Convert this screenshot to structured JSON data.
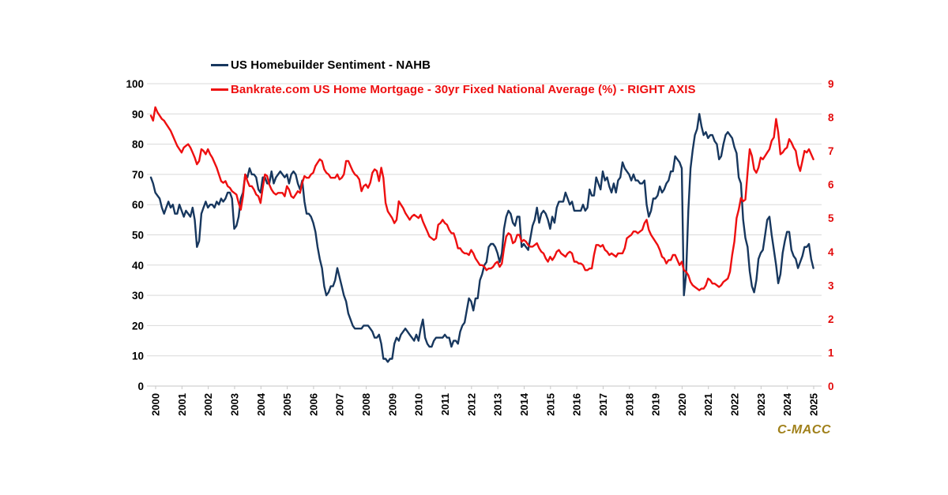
{
  "watermark": "C-MACC",
  "colors": {
    "navy": "#17375E",
    "red": "#EE0F10",
    "red_axis_text": "#E30B0C",
    "grid": "#D9D9D9",
    "axis_line": "#C6C6C6",
    "black_text": "#000000",
    "gold": "#A0801A",
    "background": "#FFFFFF"
  },
  "chart_data": {
    "type": "line",
    "title": "",
    "xlabel": "",
    "ylabel_left": "",
    "ylabel_right": "",
    "grid": "horizontal",
    "legend_position": "top-left",
    "x_start_year": 2000,
    "x_frequency": "monthly",
    "x_tick_labels": [
      "2000",
      "2001",
      "2002",
      "2003",
      "2004",
      "2005",
      "2006",
      "2007",
      "2008",
      "2009",
      "2010",
      "2011",
      "2012",
      "2013",
      "2014",
      "2015",
      "2016",
      "2017",
      "2018",
      "2019",
      "2020",
      "2021",
      "2022",
      "2023",
      "2024",
      "2025"
    ],
    "left_axis": {
      "min": 0,
      "max": 100,
      "ticks": [
        0,
        10,
        20,
        30,
        40,
        50,
        60,
        70,
        80,
        90,
        100
      ]
    },
    "right_axis": {
      "min": 0,
      "max": 9,
      "ticks": [
        0,
        1,
        2,
        3,
        4,
        5,
        6,
        7,
        8,
        9
      ]
    },
    "series": [
      {
        "name": "US Homebuilder Sentiment - NAHB",
        "axis": "left",
        "color": "#17375E",
        "label_color": "#000000",
        "values": [
          69,
          67,
          64,
          63,
          62,
          59,
          57,
          59,
          61,
          59,
          60,
          57,
          57,
          60,
          58,
          56,
          58,
          57,
          56,
          59,
          55,
          46,
          48,
          57,
          59,
          61,
          59,
          60,
          60,
          59,
          61,
          60,
          62,
          61,
          62,
          64,
          64,
          62,
          52,
          53,
          56,
          62,
          64,
          70,
          69,
          72,
          70,
          70,
          69,
          65,
          64,
          69,
          69,
          67,
          67,
          71,
          67,
          69,
          70,
          71,
          70,
          69,
          70,
          67,
          70,
          71,
          70,
          67,
          65,
          68,
          61,
          57,
          57,
          56,
          54,
          51,
          46,
          42,
          39,
          33,
          30,
          31,
          33,
          33,
          35,
          39,
          36,
          33,
          30,
          28,
          24,
          22,
          20,
          19,
          19,
          19,
          19,
          20,
          20,
          20,
          19,
          18,
          16,
          16,
          17,
          14,
          9,
          9,
          8,
          9,
          9,
          14,
          16,
          15,
          17,
          18,
          19,
          18,
          17,
          16,
          15,
          17,
          15,
          19,
          22,
          16,
          14,
          13,
          13,
          15,
          16,
          16,
          16,
          16,
          17,
          16,
          16,
          13,
          15,
          15,
          14,
          18,
          20,
          21,
          25,
          29,
          28,
          25,
          29,
          29,
          35,
          37,
          40,
          41,
          46,
          47,
          47,
          46,
          44,
          41,
          44,
          52,
          56,
          58,
          57,
          54,
          53,
          56,
          56,
          46,
          47,
          46,
          45,
          49,
          53,
          55,
          59,
          54,
          57,
          58,
          57,
          55,
          52,
          56,
          54,
          59,
          61,
          61,
          61,
          64,
          62,
          60,
          61,
          58,
          58,
          58,
          58,
          60,
          58,
          59,
          65,
          63,
          63,
          69,
          67,
          65,
          71,
          68,
          69,
          66,
          64,
          67,
          64,
          68,
          69,
          74,
          72,
          71,
          70,
          68,
          70,
          68,
          68,
          67,
          67,
          68,
          60,
          56,
          58,
          62,
          62,
          63,
          66,
          64,
          65,
          67,
          68,
          71,
          71,
          76,
          75,
          74,
          72,
          30,
          37,
          58,
          72,
          78,
          83,
          85,
          90,
          86,
          83,
          84,
          82,
          83,
          83,
          81,
          80,
          75,
          76,
          80,
          83,
          84,
          83,
          82,
          79,
          77,
          69,
          67,
          55,
          49,
          46,
          38,
          33,
          31,
          35,
          42,
          44,
          45,
          50,
          55,
          56,
          50,
          45,
          40,
          34,
          37,
          44,
          48,
          51,
          51,
          45,
          43,
          42,
          39,
          41,
          43,
          46,
          46,
          47,
          42,
          39
        ]
      },
      {
        "name": "Bankrate.com US Home Mortgage - 30yr Fixed National Average (%) - RIGHT AXIS",
        "axis": "right",
        "color": "#EE0F10",
        "label_color": "#EE0F10",
        "values": [
          8.05,
          7.9,
          8.3,
          8.15,
          8.05,
          7.95,
          7.9,
          7.8,
          7.7,
          7.6,
          7.45,
          7.3,
          7.15,
          7.05,
          6.95,
          7.1,
          7.15,
          7.2,
          7.1,
          6.95,
          6.8,
          6.6,
          6.7,
          7.05,
          7.0,
          6.9,
          7.05,
          6.9,
          6.8,
          6.65,
          6.5,
          6.3,
          6.1,
          6.05,
          6.1,
          5.95,
          5.9,
          5.8,
          5.75,
          5.7,
          5.45,
          5.25,
          5.65,
          6.3,
          6.1,
          5.95,
          5.95,
          5.85,
          5.7,
          5.65,
          5.45,
          5.9,
          6.3,
          6.25,
          6.0,
          5.85,
          5.75,
          5.7,
          5.75,
          5.75,
          5.75,
          5.65,
          5.95,
          5.85,
          5.65,
          5.6,
          5.7,
          5.8,
          5.75,
          6.05,
          6.25,
          6.2,
          6.2,
          6.3,
          6.35,
          6.55,
          6.65,
          6.75,
          6.7,
          6.45,
          6.35,
          6.3,
          6.2,
          6.2,
          6.2,
          6.3,
          6.15,
          6.2,
          6.3,
          6.7,
          6.7,
          6.55,
          6.4,
          6.3,
          6.25,
          6.15,
          5.8,
          5.95,
          6.0,
          5.9,
          6.05,
          6.35,
          6.45,
          6.4,
          6.1,
          6.5,
          6.2,
          5.45,
          5.2,
          5.1,
          5.0,
          4.85,
          4.95,
          5.5,
          5.4,
          5.3,
          5.15,
          5.05,
          4.95,
          5.05,
          5.1,
          5.05,
          5.0,
          5.1,
          4.9,
          4.75,
          4.6,
          4.45,
          4.4,
          4.35,
          4.4,
          4.8,
          4.85,
          4.95,
          4.85,
          4.8,
          4.65,
          4.55,
          4.55,
          4.35,
          4.1,
          4.1,
          4.0,
          3.95,
          3.95,
          3.9,
          4.05,
          3.95,
          3.8,
          3.7,
          3.6,
          3.6,
          3.55,
          3.45,
          3.5,
          3.5,
          3.55,
          3.65,
          3.7,
          3.55,
          3.65,
          4.1,
          4.45,
          4.55,
          4.5,
          4.25,
          4.3,
          4.5,
          4.5,
          4.3,
          4.35,
          4.3,
          4.2,
          4.15,
          4.15,
          4.2,
          4.25,
          4.1,
          4.0,
          3.95,
          3.8,
          3.7,
          3.85,
          3.75,
          3.85,
          4.0,
          4.05,
          3.95,
          3.9,
          3.85,
          3.95,
          4.0,
          3.95,
          3.7,
          3.7,
          3.65,
          3.65,
          3.6,
          3.45,
          3.45,
          3.5,
          3.5,
          3.9,
          4.2,
          4.2,
          4.15,
          4.2,
          4.05,
          4.0,
          3.9,
          3.95,
          3.9,
          3.85,
          3.95,
          3.95,
          3.95,
          4.1,
          4.4,
          4.45,
          4.5,
          4.6,
          4.6,
          4.55,
          4.6,
          4.65,
          4.85,
          4.95,
          4.65,
          4.5,
          4.4,
          4.3,
          4.2,
          4.05,
          3.85,
          3.8,
          3.65,
          3.75,
          3.75,
          3.9,
          3.9,
          3.75,
          3.6,
          3.7,
          3.45,
          3.4,
          3.3,
          3.1,
          3.0,
          2.95,
          2.9,
          2.85,
          2.9,
          2.9,
          3.0,
          3.2,
          3.15,
          3.05,
          3.05,
          3.0,
          2.95,
          3.0,
          3.1,
          3.15,
          3.2,
          3.4,
          3.9,
          4.3,
          5.0,
          5.25,
          5.6,
          5.5,
          5.55,
          6.35,
          7.05,
          6.85,
          6.45,
          6.35,
          6.5,
          6.8,
          6.75,
          6.85,
          6.95,
          7.05,
          7.3,
          7.4,
          7.95,
          7.55,
          6.9,
          6.95,
          7.05,
          7.1,
          7.35,
          7.25,
          7.1,
          7.0,
          6.6,
          6.4,
          6.7,
          7.0,
          6.95,
          7.05,
          6.9,
          6.75
        ]
      }
    ]
  }
}
